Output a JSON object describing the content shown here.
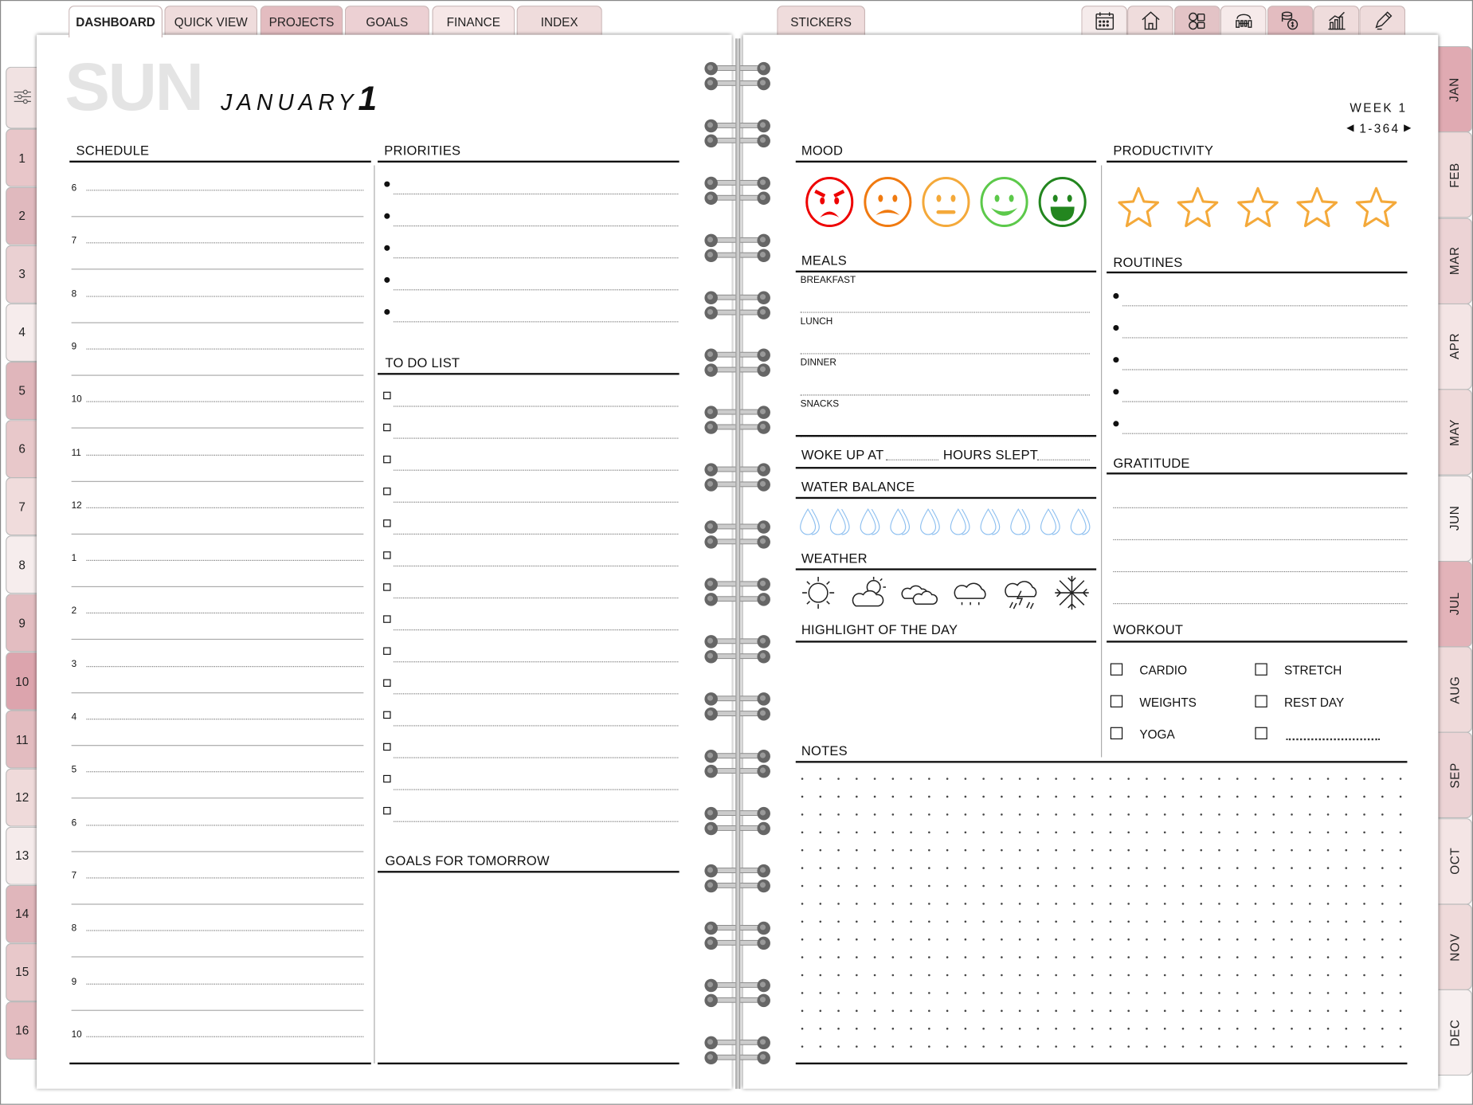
{
  "top_tabs": [
    {
      "label": "DASHBOARD",
      "color": "#ffffff",
      "active": true
    },
    {
      "label": "QUICK VIEW",
      "color": "#efdcdc"
    },
    {
      "label": "PROJECTS",
      "color": "#e3bcc0"
    },
    {
      "label": "GOALS",
      "color": "#ecd0d3"
    },
    {
      "label": "FINANCE",
      "color": "#f6e7e7"
    },
    {
      "label": "INDEX",
      "color": "#efdcdc"
    },
    {
      "label": "STICKERS",
      "color": "#efdcdc"
    }
  ],
  "icon_tabs": [
    {
      "icon": "calendar-icon",
      "color": "#f5ebeb"
    },
    {
      "icon": "home-icon",
      "color": "#efdcdc"
    },
    {
      "icon": "media-icon",
      "color": "#e3c3c6"
    },
    {
      "icon": "fitness-icon",
      "color": "#f6eaea"
    },
    {
      "icon": "money-icon",
      "color": "#e3bcc0"
    },
    {
      "icon": "chart-icon",
      "color": "#efdcdc"
    },
    {
      "icon": "pencil-icon",
      "color": "#efdcdc"
    }
  ],
  "left_tabs": {
    "settings_icon": "sliders-icon",
    "items": [
      "1",
      "2",
      "3",
      "4",
      "5",
      "6",
      "7",
      "8",
      "9",
      "10",
      "11",
      "12",
      "13",
      "14",
      "15",
      "16"
    ],
    "colors": [
      "#e8c6c9",
      "#e0b9be",
      "#ead0d2",
      "#f6ecec",
      "#e0b6bb",
      "#e8c8ca",
      "#f0dcdc",
      "#f6eded",
      "#e3bdc1",
      "#dca4ad",
      "#e3bcc0",
      "#efdada",
      "#f5ebeb",
      "#e0b6bb",
      "#e8c8ca",
      "#e3bcc0"
    ]
  },
  "month_tabs": {
    "items": [
      "JAN",
      "FEB",
      "MAR",
      "APR",
      "MAY",
      "JUN",
      "JUL",
      "AUG",
      "SEP",
      "OCT",
      "NOV",
      "DEC"
    ],
    "colors": [
      "#e0aab2",
      "#efdada",
      "#ecd3d5",
      "#f4e5e5",
      "#efdada",
      "#f7efef",
      "#e3b3b9",
      "#efdada",
      "#ecd3d5",
      "#f4e5e5",
      "#efdada",
      "#f7efef"
    ]
  },
  "date": {
    "day": "SUN",
    "month": "JANUARY",
    "number": "1"
  },
  "week": {
    "label": "WEEK 1",
    "range": "1-364"
  },
  "schedule": {
    "title": "SCHEDULE",
    "hours": [
      "6",
      "7",
      "8",
      "9",
      "10",
      "11",
      "12",
      "1",
      "2",
      "3",
      "4",
      "5",
      "6",
      "7",
      "8",
      "9",
      "10"
    ]
  },
  "priorities": {
    "title": "PRIORITIES",
    "count": 5
  },
  "todo": {
    "title": "TO DO LIST",
    "count": 14
  },
  "goals_tomorrow": {
    "title": "GOALS FOR TOMORROW"
  },
  "mood": {
    "title": "MOOD",
    "faces": [
      {
        "name": "angry",
        "color": "#ee0000"
      },
      {
        "name": "sad",
        "color": "#f07a10"
      },
      {
        "name": "neutral",
        "color": "#f4a93a"
      },
      {
        "name": "happy",
        "color": "#5cc94a"
      },
      {
        "name": "very-happy",
        "color": "#23861f"
      }
    ]
  },
  "productivity": {
    "title": "PRODUCTIVITY",
    "stars": 5,
    "rating": 0,
    "color": "#f4a93a"
  },
  "meals": {
    "title": "MEALS",
    "items": [
      "BREAKFAST",
      "LUNCH",
      "DINNER",
      "SNACKS"
    ]
  },
  "sleep": {
    "woke_label": "WOKE UP AT",
    "hours_label": "HOURS SLEPT"
  },
  "water": {
    "title": "WATER BALANCE",
    "drops": 10,
    "filled": 0,
    "color": "#8fc0f0"
  },
  "weather": {
    "title": "WEATHER",
    "icons": [
      "sun-icon",
      "partly-cloudy-icon",
      "cloudy-icon",
      "rain-icon",
      "thunderstorm-icon",
      "snowflake-icon"
    ]
  },
  "highlight": {
    "title": "HIGHLIGHT OF THE DAY"
  },
  "routines": {
    "title": "ROUTINES",
    "count": 5
  },
  "gratitude": {
    "title": "GRATITUDE"
  },
  "workout": {
    "title": "WORKOUT",
    "items": [
      "CARDIO",
      "STRETCH",
      "WEIGHTS",
      "REST DAY",
      "YOGA",
      ""
    ]
  },
  "notes": {
    "title": "NOTES"
  }
}
